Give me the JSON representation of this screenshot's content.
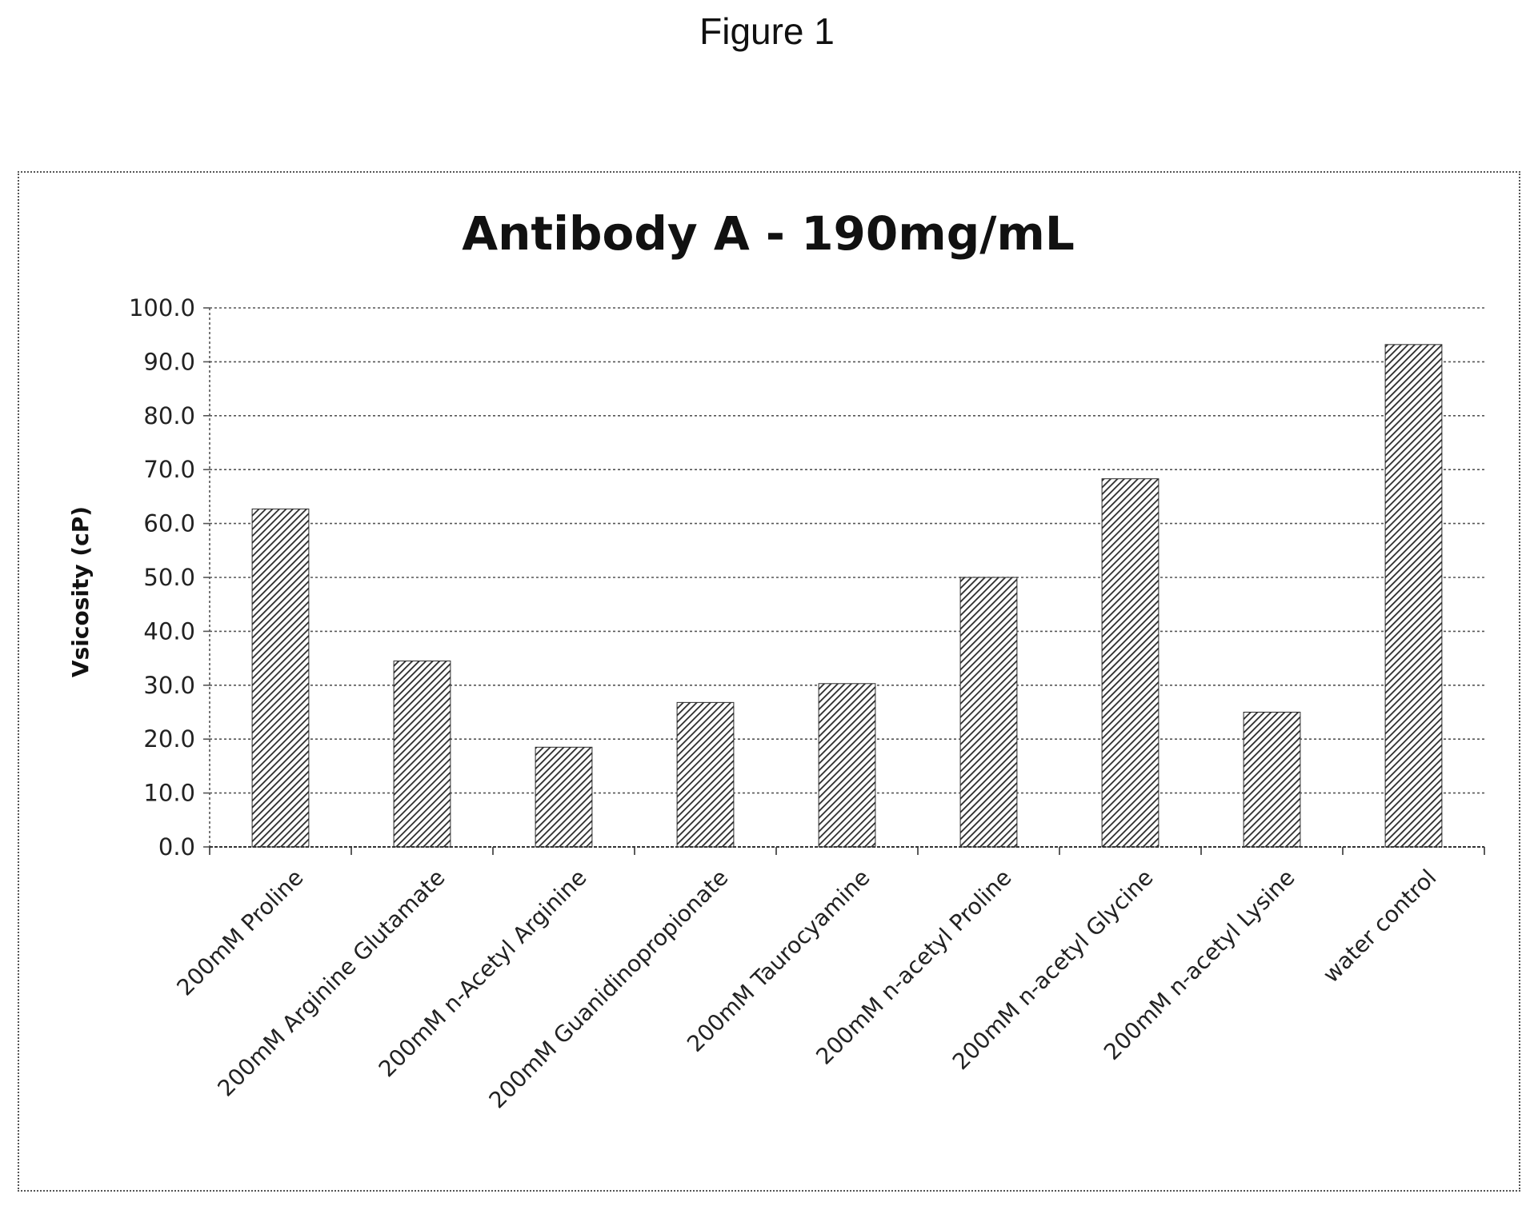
{
  "figure_label": "Figure 1",
  "chart_data": {
    "type": "bar",
    "title": "Antibody A - 190mg/mL",
    "xlabel": "",
    "ylabel": "Vsicosity (cP)",
    "ylim": [
      0,
      100
    ],
    "yticks": [
      "0.0",
      "10.0",
      "20.0",
      "30.0",
      "40.0",
      "50.0",
      "60.0",
      "70.0",
      "80.0",
      "90.0",
      "100.0"
    ],
    "grid": true,
    "legend": "none",
    "bar_color": "#333333",
    "bar_pattern": "diagonal-hatch",
    "categories": [
      "200mM Proline",
      "200mM Arginine Glutamate",
      "200mM n-Acetyl Arginine",
      "200mM Guanidinopropionate",
      "200mM Taurocyamine",
      "200mM n-acetyl Proline",
      "200mM n-acetyl Glycine",
      "200mM n-acetyl Lysine",
      "water control"
    ],
    "values": [
      62.7,
      34.5,
      18.5,
      26.8,
      30.3,
      50.0,
      68.3,
      25.0,
      93.2
    ]
  }
}
